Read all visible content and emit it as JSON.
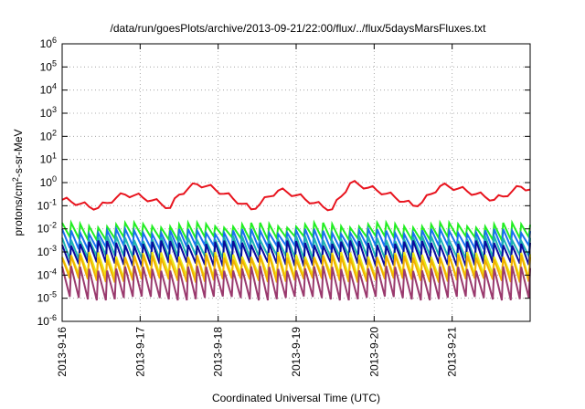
{
  "chart_data": {
    "type": "line",
    "title": "/data/run/goesPlots/archive/2013-09-21/22:00/flux/../flux/5daysMarsFluxes.txt",
    "xlabel": "Coordinated Universal Time (UTC)",
    "ylabel": "protons/cm²-s-sr-MeV",
    "yscale": "log",
    "ylim": [
      1e-06,
      1000000.0
    ],
    "xlim": [
      "2013-09-16",
      "2013-09-22"
    ],
    "x_ticks": [
      "2013-9-16",
      "2013-9-17",
      "2013-9-18",
      "2013-9-19",
      "2013-9-20",
      "2013-9-21"
    ],
    "y_ticks": [
      {
        "base": "10",
        "exp": "-6"
      },
      {
        "base": "10",
        "exp": "-5"
      },
      {
        "base": "10",
        "exp": "-4"
      },
      {
        "base": "10",
        "exp": "-3"
      },
      {
        "base": "10",
        "exp": "-2"
      },
      {
        "base": "10",
        "exp": "-1"
      },
      {
        "base": "10",
        "exp": "0"
      },
      {
        "base": "10",
        "exp": "1"
      },
      {
        "base": "10",
        "exp": "2"
      },
      {
        "base": "10",
        "exp": "3"
      },
      {
        "base": "10",
        "exp": "4"
      },
      {
        "base": "10",
        "exp": "5"
      },
      {
        "base": "10",
        "exp": "6"
      }
    ],
    "grid": true,
    "series": [
      {
        "color": "#e8141e",
        "pattern": "envelope",
        "values": [
          0.18,
          0.15,
          0.12,
          0.09,
          0.08,
          0.13,
          0.22,
          0.3,
          0.28,
          0.22,
          0.17,
          0.12,
          0.08,
          0.3,
          0.55,
          0.85,
          0.7,
          0.5,
          0.33,
          0.2,
          0.12,
          0.07,
          0.12,
          0.25,
          0.45,
          0.38,
          0.28,
          0.19,
          0.13,
          0.09,
          0.07,
          0.25,
          0.95,
          0.8,
          0.6,
          0.45,
          0.33,
          0.23,
          0.15,
          0.1,
          0.14,
          0.32,
          0.7,
          0.65,
          0.55,
          0.42,
          0.32,
          0.24,
          0.18,
          0.25,
          0.42,
          0.65,
          0.5
        ],
        "teeth": 0.45
      },
      {
        "color": "#22ee22",
        "pattern": "sawtooth",
        "peak": 0.015,
        "trough": 0.004
      },
      {
        "color": "#1a6ef0",
        "pattern": "sawtooth",
        "peak": 0.008,
        "trough": 0.0016
      },
      {
        "color": "#1db3b3",
        "pattern": "sawtooth",
        "peak": 0.004,
        "trough": 0.0006
      },
      {
        "color": "#0a0a9e",
        "pattern": "sawtooth",
        "peak": 0.0025,
        "trough": 0.0003
      },
      {
        "color": "#e8e816",
        "pattern": "sawtooth",
        "peak": 0.0008,
        "trough": 9e-05
      },
      {
        "color": "#f2b100",
        "pattern": "sawtooth",
        "peak": 0.0006,
        "trough": 6e-05
      },
      {
        "color": "#9a3a6e",
        "pattern": "sawtooth",
        "peak": 0.0002,
        "trough": 1e-05
      }
    ],
    "cycles": 52
  }
}
